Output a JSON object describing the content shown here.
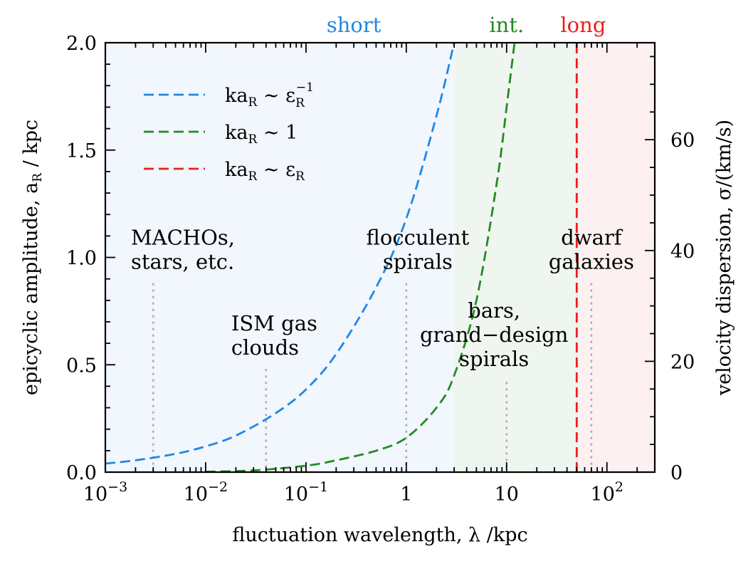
{
  "chart_data": {
    "type": "line",
    "x_scale": "log",
    "xlim": [
      0.001,
      300
    ],
    "ylim": [
      0,
      2
    ],
    "y2lim": [
      0,
      77.5
    ],
    "xlabel": "fluctuation wavelength, λ /kpc",
    "ylabel": "epicyclic amplitude, a",
    "ylabel_sub": "R",
    "ylabel_tail": " / kpc",
    "y2label": "velocity dispersion, σ/(km/s)",
    "x_ticks": [
      {
        "value": 0.001,
        "base": "10",
        "exp": "−3"
      },
      {
        "value": 0.01,
        "base": "10",
        "exp": "−2"
      },
      {
        "value": 0.1,
        "base": "10",
        "exp": "−1"
      },
      {
        "value": 1,
        "base": "1",
        "exp": ""
      },
      {
        "value": 10,
        "base": "10",
        "exp": ""
      },
      {
        "value": 100,
        "base": "10",
        "exp": "2"
      }
    ],
    "y_ticks": [
      {
        "value": 0,
        "label": "0.0"
      },
      {
        "value": 0.5,
        "label": "0.5"
      },
      {
        "value": 1.0,
        "label": "1.0"
      },
      {
        "value": 1.5,
        "label": "1.5"
      },
      {
        "value": 2.0,
        "label": "2.0"
      }
    ],
    "y2_ticks": [
      {
        "value": 0,
        "label": "0"
      },
      {
        "value": 20,
        "label": "20"
      },
      {
        "value": 40,
        "label": "40"
      },
      {
        "value": 60,
        "label": "60"
      }
    ],
    "regions": [
      {
        "name": "short",
        "x_from": 0.001,
        "x_to": 3.0,
        "fill": "#f2f6fd",
        "label": "short",
        "label_color": "#1e88e5",
        "label_x": 0.3
      },
      {
        "name": "int",
        "x_from": 3.0,
        "x_to": 50,
        "fill": "#eff6ef",
        "label": "int.",
        "label_color": "#228b22",
        "label_x": 10
      },
      {
        "name": "long",
        "x_from": 50,
        "x_to": 300,
        "fill": "#fdf0f0",
        "label": "long",
        "label_color": "#ee1c1c",
        "label_x": 58
      }
    ],
    "series": [
      {
        "name": "ka_R ~ ε_R^-1",
        "legend": {
          "base": "ka",
          "sub": "R",
          "rel": " ∼ ε",
          "sub2": "R",
          "sup": "−1"
        },
        "color": "#1e88e5",
        "dash": "dashed",
        "x": [
          0.001,
          0.002,
          0.005,
          0.01,
          0.02,
          0.05,
          0.1,
          0.2,
          0.5,
          1,
          2,
          3
        ],
        "y": [
          0.04,
          0.055,
          0.085,
          0.12,
          0.17,
          0.275,
          0.385,
          0.55,
          0.86,
          1.18,
          1.66,
          2.0
        ]
      },
      {
        "name": "ka_R ~ 1",
        "legend": {
          "base": "ka",
          "sub": "R",
          "rel": " ∼ 1",
          "sub2": "",
          "sup": ""
        },
        "color": "#228b22",
        "dash": "dashed",
        "x": [
          0.01,
          0.03,
          0.1,
          0.2,
          0.5,
          1,
          2,
          3,
          5,
          8,
          10,
          12
        ],
        "y": [
          0.002,
          0.008,
          0.03,
          0.055,
          0.1,
          0.16,
          0.3,
          0.45,
          0.8,
          1.35,
          1.7,
          2.0
        ]
      },
      {
        "name": "ka_R ~ ε_R",
        "legend": {
          "base": "ka",
          "sub": "R",
          "rel": " ∼ ε",
          "sub2": "R",
          "sup": ""
        },
        "color": "#ee1c1c",
        "dash": "dashed",
        "x": [
          50,
          50
        ],
        "y": [
          0,
          2
        ]
      }
    ],
    "markers": [
      {
        "x": 0.003,
        "y_top": 0.88
      },
      {
        "x": 0.04,
        "y_top": 0.48
      },
      {
        "x": 1,
        "y_top": 0.88
      },
      {
        "x": 10,
        "y_top": 0.42
      },
      {
        "x": 70,
        "y_top": 0.88
      }
    ],
    "annotations": [
      {
        "lines": [
          "MACHOs,",
          "stars, etc."
        ],
        "x": 0.0018,
        "y": 1.06,
        "anchor": "start"
      },
      {
        "lines": [
          "ISM gas",
          "clouds"
        ],
        "x": 0.018,
        "y": 0.66,
        "anchor": "start"
      },
      {
        "lines": [
          "flocculent",
          "spirals"
        ],
        "x": 1.3,
        "y": 1.06,
        "anchor": "middle"
      },
      {
        "lines": [
          "bars,",
          "grand−design",
          "spirals"
        ],
        "x": 7.5,
        "y": 0.72,
        "anchor": "middle"
      },
      {
        "lines": [
          "dwarf",
          "galaxies"
        ],
        "x": 70,
        "y": 1.06,
        "anchor": "middle"
      }
    ]
  }
}
